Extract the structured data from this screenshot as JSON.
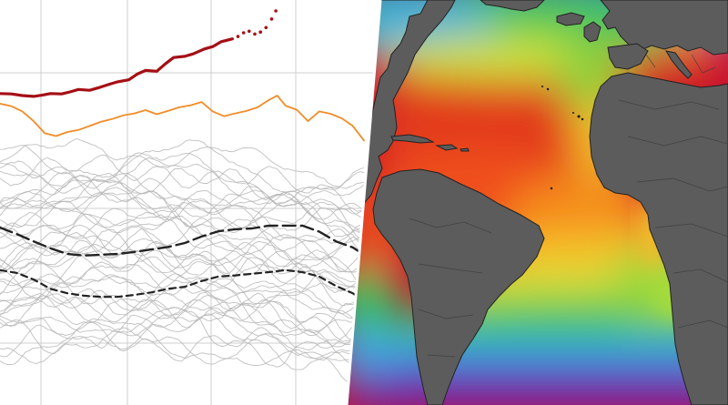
{
  "chart_data": {
    "type": "line",
    "title": "",
    "xlabel": "",
    "ylabel": "",
    "grid": true,
    "x_range": [
      0,
      13
    ],
    "y_range": [
      0,
      100
    ],
    "legend": "none",
    "series": [
      {
        "role": "current",
        "color": "#a50f15",
        "points": [
          [
            0.0,
            76.9
          ],
          [
            0.4,
            76.8
          ],
          [
            0.8,
            76.4
          ],
          [
            1.2,
            76.2
          ],
          [
            1.5,
            76.5
          ],
          [
            1.8,
            76.9
          ],
          [
            2.2,
            76.8
          ],
          [
            2.5,
            77.3
          ],
          [
            2.8,
            77.9
          ],
          [
            3.2,
            77.7
          ],
          [
            3.5,
            78.3
          ],
          [
            3.9,
            79.2
          ],
          [
            4.2,
            79.8
          ],
          [
            4.6,
            80.3
          ],
          [
            4.9,
            81.7
          ],
          [
            5.2,
            82.6
          ],
          [
            5.6,
            82.4
          ],
          [
            5.9,
            84.2
          ],
          [
            6.2,
            85.8
          ],
          [
            6.6,
            86.1
          ],
          [
            6.9,
            86.7
          ],
          [
            7.3,
            87.9
          ],
          [
            7.6,
            88.5
          ],
          [
            7.9,
            89.7
          ],
          [
            8.3,
            90.4
          ]
        ],
        "markers": [
          [
            8.5,
            91.0
          ],
          [
            8.7,
            91.9
          ],
          [
            8.9,
            92.3
          ],
          [
            9.1,
            91.6
          ],
          [
            9.3,
            92.1
          ],
          [
            9.5,
            93.2
          ],
          [
            9.7,
            95.3
          ],
          [
            9.85,
            97.3
          ]
        ]
      },
      {
        "role": "previous-year",
        "color": "#f28c28",
        "points": [
          [
            0.0,
            74.4
          ],
          [
            0.4,
            73.8
          ],
          [
            0.8,
            72.5
          ],
          [
            1.2,
            70.1
          ],
          [
            1.6,
            67.1
          ],
          [
            2.0,
            66.4
          ],
          [
            2.4,
            67.4
          ],
          [
            2.8,
            67.9
          ],
          [
            3.2,
            68.9
          ],
          [
            3.6,
            69.9
          ],
          [
            4.0,
            70.6
          ],
          [
            4.4,
            71.5
          ],
          [
            4.8,
            72.0
          ],
          [
            5.2,
            72.8
          ],
          [
            5.6,
            71.8
          ],
          [
            6.0,
            72.6
          ],
          [
            6.4,
            73.5
          ],
          [
            6.8,
            74.0
          ],
          [
            7.2,
            74.8
          ],
          [
            7.6,
            72.5
          ],
          [
            8.0,
            71.3
          ],
          [
            8.4,
            72.0
          ],
          [
            8.8,
            72.6
          ],
          [
            9.2,
            73.5
          ],
          [
            9.6,
            75.3
          ],
          [
            9.9,
            76.4
          ],
          [
            10.2,
            73.9
          ],
          [
            10.6,
            72.9
          ],
          [
            11.0,
            70.1
          ],
          [
            11.4,
            72.5
          ],
          [
            11.8,
            71.9
          ],
          [
            12.2,
            70.8
          ],
          [
            12.6,
            68.9
          ],
          [
            13.0,
            65.3
          ]
        ]
      },
      {
        "role": "climatology-upper",
        "color": "#222222",
        "style": "long-dash",
        "points": [
          [
            0.0,
            43.8
          ],
          [
            0.6,
            42.2
          ],
          [
            1.2,
            40.4
          ],
          [
            1.8,
            38.7
          ],
          [
            2.4,
            37.3
          ],
          [
            3.0,
            36.9
          ],
          [
            3.6,
            37.1
          ],
          [
            4.2,
            37.3
          ],
          [
            4.8,
            37.8
          ],
          [
            5.4,
            38.4
          ],
          [
            6.0,
            39.0
          ],
          [
            6.6,
            40.0
          ],
          [
            7.2,
            41.6
          ],
          [
            7.8,
            42.9
          ],
          [
            8.4,
            43.4
          ],
          [
            9.0,
            43.6
          ],
          [
            9.6,
            44.3
          ],
          [
            10.2,
            44.3
          ],
          [
            10.8,
            44.3
          ],
          [
            11.4,
            42.8
          ],
          [
            12.0,
            40.4
          ],
          [
            12.6,
            38.9
          ],
          [
            13.0,
            37.1
          ]
        ]
      },
      {
        "role": "climatology-lower",
        "color": "#222222",
        "style": "short-dash",
        "points": [
          [
            0.0,
            33.3
          ],
          [
            0.6,
            32.6
          ],
          [
            1.2,
            31.0
          ],
          [
            1.8,
            28.7
          ],
          [
            2.4,
            27.6
          ],
          [
            3.0,
            27.0
          ],
          [
            3.6,
            26.7
          ],
          [
            4.2,
            26.7
          ],
          [
            4.8,
            27.2
          ],
          [
            5.4,
            27.8
          ],
          [
            6.0,
            28.7
          ],
          [
            6.6,
            29.2
          ],
          [
            7.2,
            30.6
          ],
          [
            7.8,
            31.7
          ],
          [
            8.4,
            32.0
          ],
          [
            9.0,
            32.4
          ],
          [
            9.6,
            32.8
          ],
          [
            10.2,
            33.3
          ],
          [
            10.8,
            32.8
          ],
          [
            11.4,
            31.7
          ],
          [
            12.0,
            29.4
          ],
          [
            12.6,
            27.6
          ],
          [
            13.0,
            25.4
          ]
        ]
      }
    ],
    "background_series_count": 42,
    "background_series_color": "#b5b5b5"
  },
  "map": {
    "type": "sea-surface-temperature",
    "region": "Atlantic Ocean",
    "colormap": [
      "#7a1fa2",
      "#2b4fd6",
      "#4fb0e8",
      "#35c35a",
      "#c9e23a",
      "#f5e23a",
      "#f5a623",
      "#e8461c",
      "#c8102e"
    ]
  }
}
